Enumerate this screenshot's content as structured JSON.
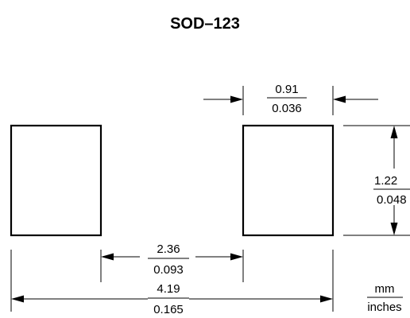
{
  "title": "SOD–123",
  "dimensions": {
    "pad_width": {
      "mm": "0.91",
      "inches": "0.036"
    },
    "pad_height": {
      "mm": "1.22",
      "inches": "0.048"
    },
    "inner_spacing": {
      "mm": "2.36",
      "inches": "0.093"
    },
    "overall_length": {
      "mm": "4.19",
      "inches": "0.165"
    }
  },
  "units_legend": {
    "primary": "mm",
    "secondary": "inches"
  }
}
